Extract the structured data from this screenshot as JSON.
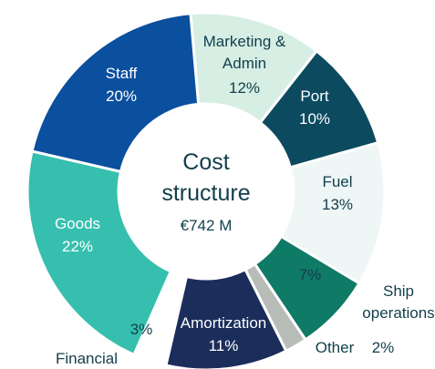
{
  "chart_data": {
    "type": "donut",
    "title": "Cost structure",
    "subtitle": "€742 M",
    "categories": [
      "Marketing & Admin",
      "Port",
      "Fuel",
      "Ship operations",
      "Other",
      "Amortization",
      "Financial",
      "Goods",
      "Staff"
    ],
    "values": [
      12,
      10,
      13,
      7,
      2,
      11,
      3,
      22,
      20
    ],
    "value_labels": [
      "12%",
      "10%",
      "13%",
      "7%",
      "2%",
      "11%",
      "3%",
      "22%",
      "20%"
    ],
    "colors": [
      "#d6eee4",
      "#0c4a5f",
      "#eef6f6",
      "#0f7a66",
      "#b8bcb7",
      "#1b2d5b",
      "#ffffff",
      "#36bfae",
      "#0b4f9f"
    ]
  }
}
